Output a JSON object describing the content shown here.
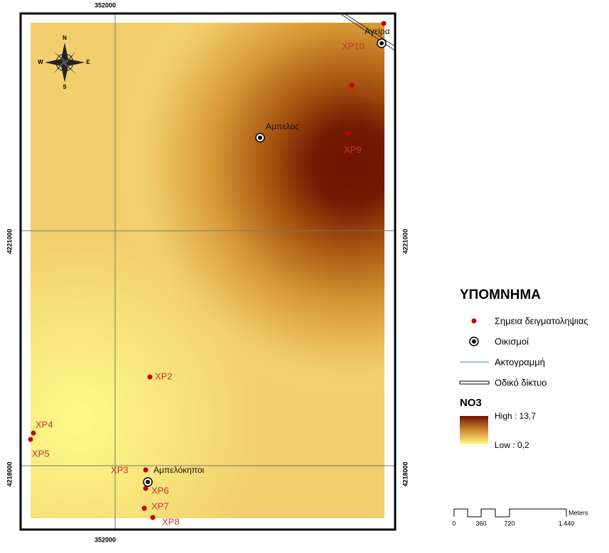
{
  "map": {
    "grid_labels": {
      "easting": "352000",
      "northing_top": "4221000",
      "northing_bottom": "4218000"
    },
    "compass": {
      "n": "N",
      "s": "S",
      "e": "E",
      "w": "W"
    },
    "sample_points": [
      "XP1",
      "XP2",
      "XP3",
      "XP4",
      "XP5",
      "XP6",
      "XP7",
      "XP8",
      "XP9",
      "XP10"
    ],
    "settlements": [
      "Αμπελος",
      "Αγείρα",
      "Αμπελόκηποι"
    ]
  },
  "legend": {
    "title": "ΥΠΟΜΝΗΜΑ",
    "items": [
      "Σημεια δειγματοληψιας",
      "Οικισμοί",
      "Ακτογραμμή",
      "Οδικό δίκτυο"
    ],
    "raster_title": "NO3",
    "high": "High : 13,7",
    "low": "Low : 0,2"
  },
  "scale_bar": {
    "labels": [
      "0",
      "360",
      "720",
      "1.440"
    ],
    "unit": "Meters"
  }
}
